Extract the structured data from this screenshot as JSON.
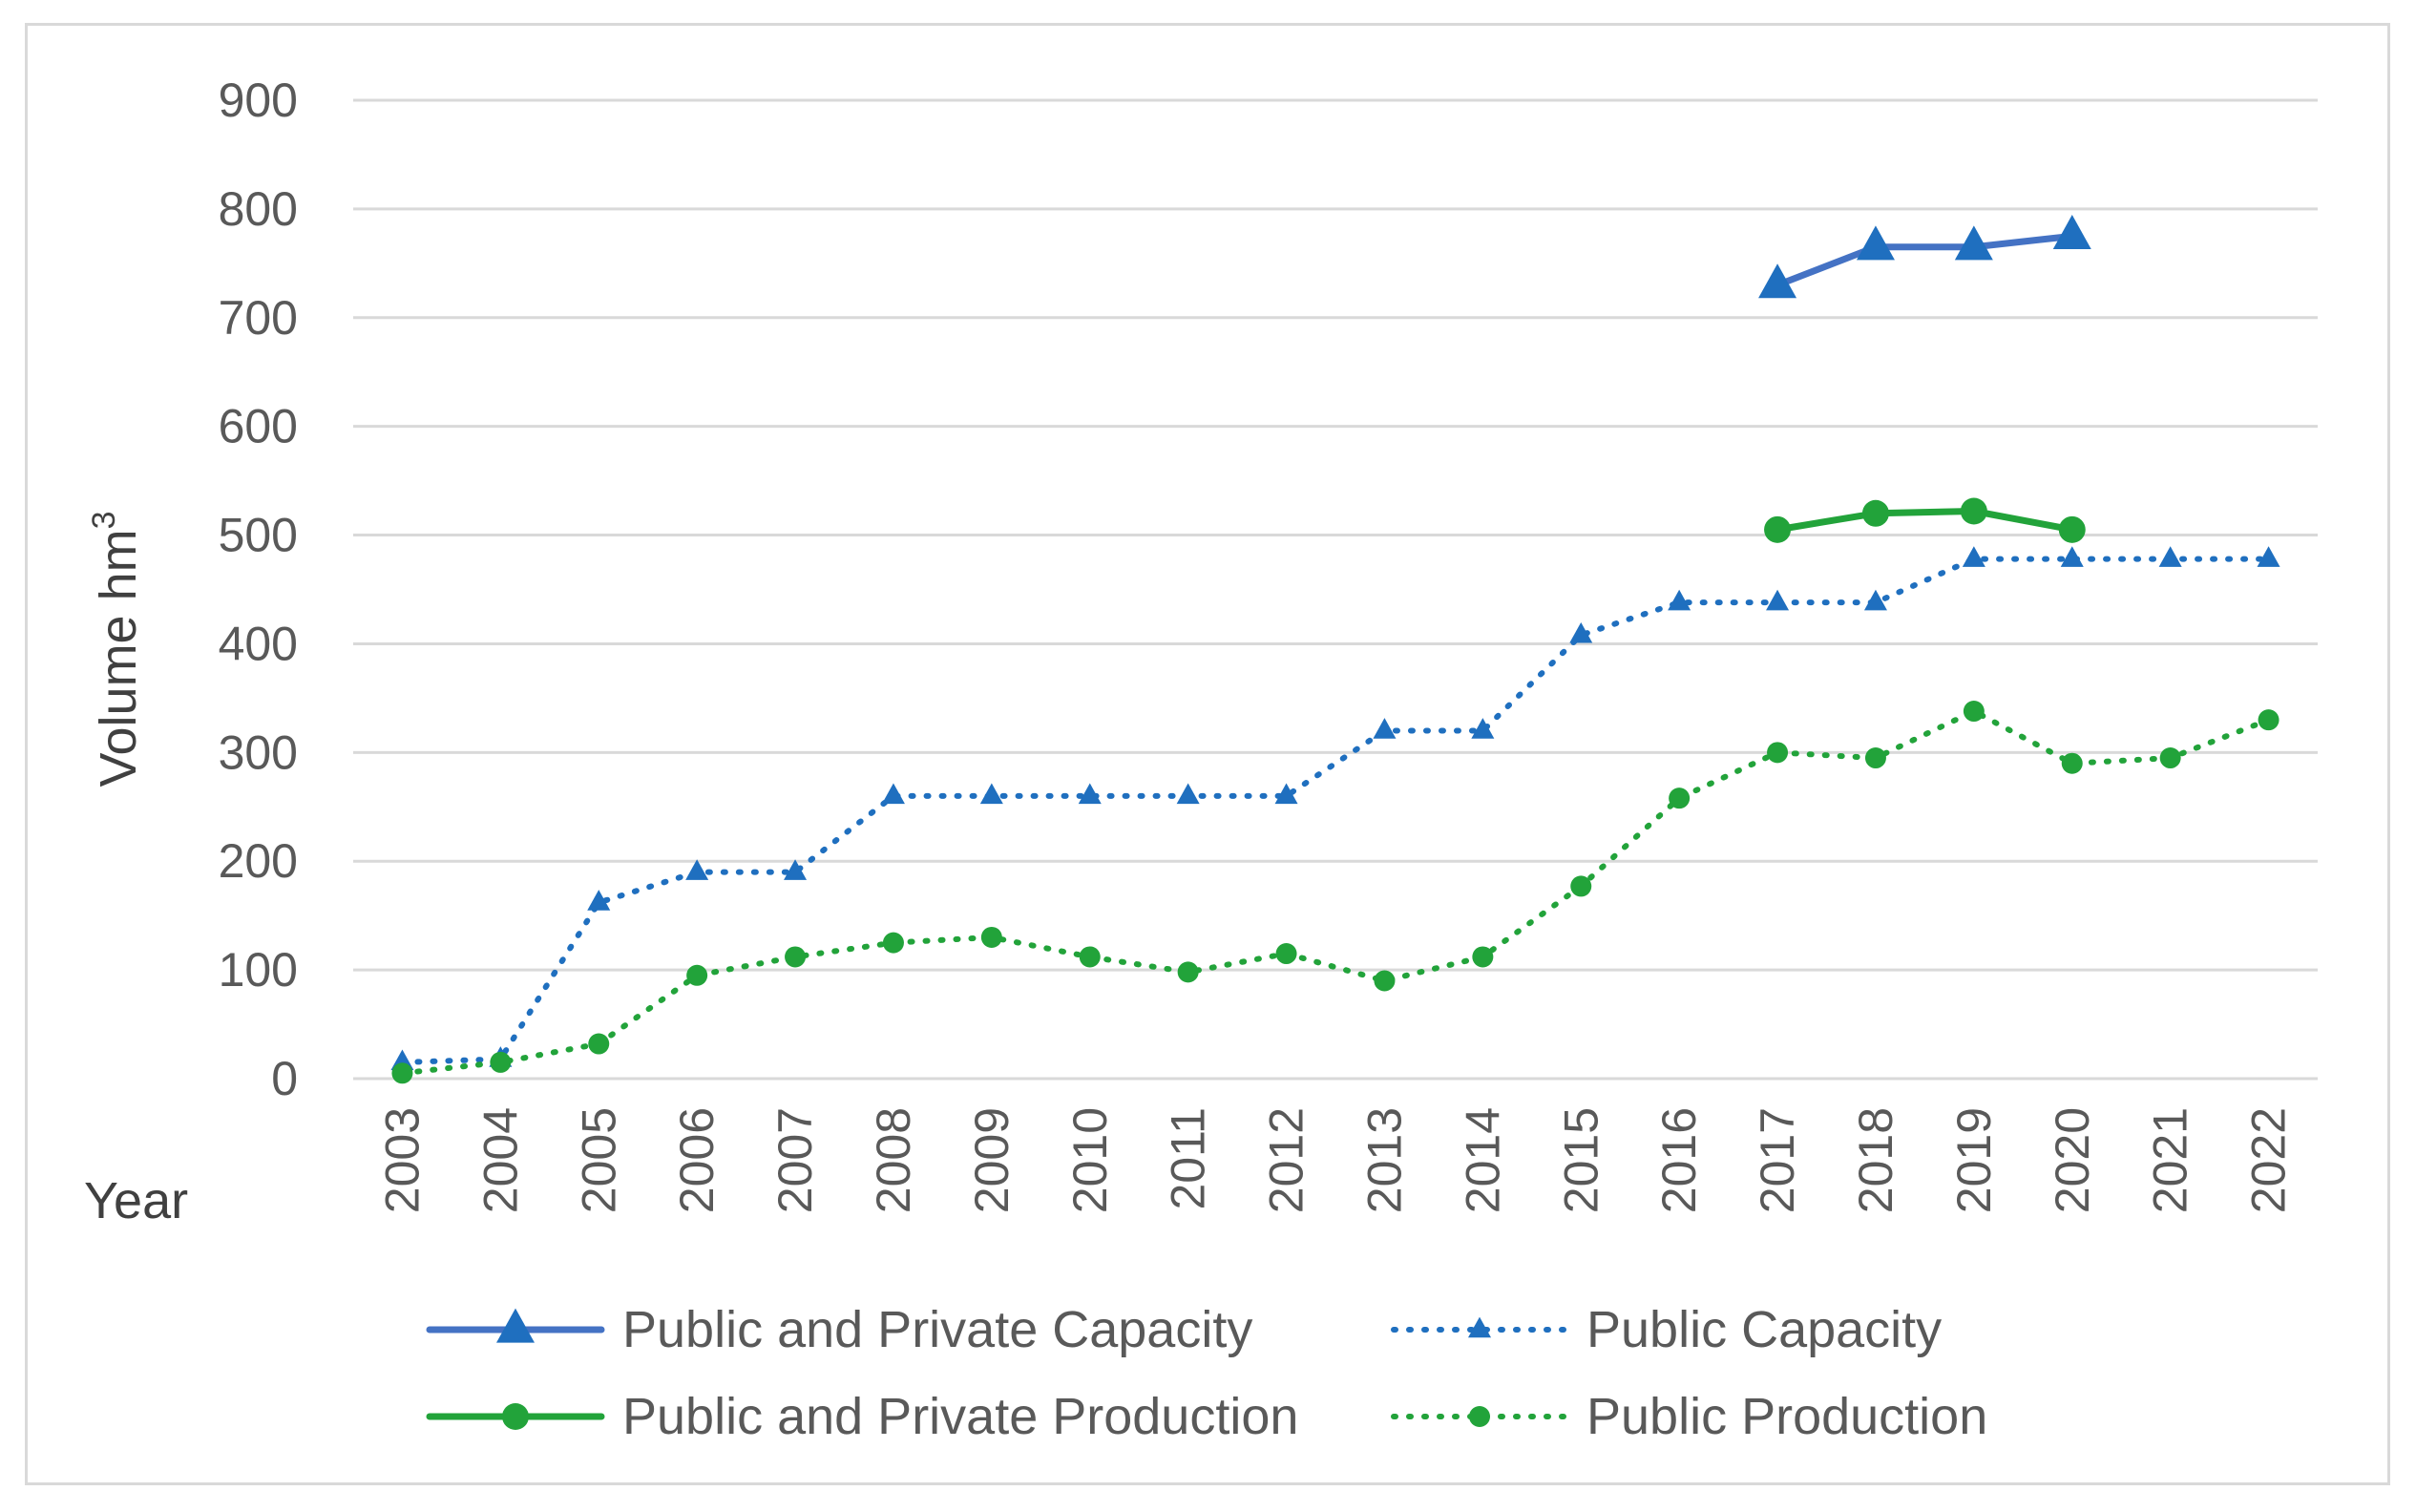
{
  "chart_data": {
    "type": "line",
    "title": "",
    "xlabel": "Year",
    "ylabel": "Volume hm",
    "ylabel_superscript": "3",
    "ylim": [
      0,
      900
    ],
    "yticks": [
      0,
      100,
      200,
      300,
      400,
      500,
      600,
      700,
      800,
      900
    ],
    "grid": true,
    "legend_position": "bottom",
    "categories": [
      "2003",
      "2004",
      "2005",
      "2006",
      "2007",
      "2008",
      "2009",
      "2010",
      "2011",
      "2012",
      "2013",
      "2014",
      "2015",
      "2016",
      "2017",
      "2018",
      "2019",
      "2020",
      "2021",
      "2022"
    ],
    "series": [
      {
        "name": "Public and Private Capacity",
        "style": "solid",
        "marker": "triangle",
        "color": "#4472C4",
        "marker_color": "#1F6FBF",
        "values": [
          null,
          null,
          null,
          null,
          null,
          null,
          null,
          null,
          null,
          null,
          null,
          null,
          null,
          null,
          730,
          765,
          765,
          775,
          null,
          null
        ]
      },
      {
        "name": "Public Capacity",
        "style": "dotted",
        "marker": "triangle",
        "color": "#1F6FBF",
        "marker_color": "#1F6FBF",
        "values": [
          15,
          18,
          162,
          190,
          190,
          260,
          260,
          260,
          260,
          260,
          320,
          320,
          408,
          438,
          438,
          438,
          478,
          478,
          478,
          478
        ]
      },
      {
        "name": "Public and Private Production",
        "style": "solid",
        "marker": "circle",
        "color": "#22A33A",
        "marker_color": "#22A33A",
        "values": [
          null,
          null,
          null,
          null,
          null,
          null,
          null,
          null,
          null,
          null,
          null,
          null,
          null,
          null,
          505,
          520,
          522,
          505,
          null,
          null
        ]
      },
      {
        "name": "Public Production",
        "style": "dotted",
        "marker": "circle",
        "color": "#22A33A",
        "marker_color": "#22A33A",
        "values": [
          5,
          15,
          32,
          95,
          112,
          125,
          130,
          112,
          98,
          115,
          90,
          112,
          177,
          258,
          300,
          295,
          338,
          290,
          295,
          330
        ]
      }
    ]
  }
}
